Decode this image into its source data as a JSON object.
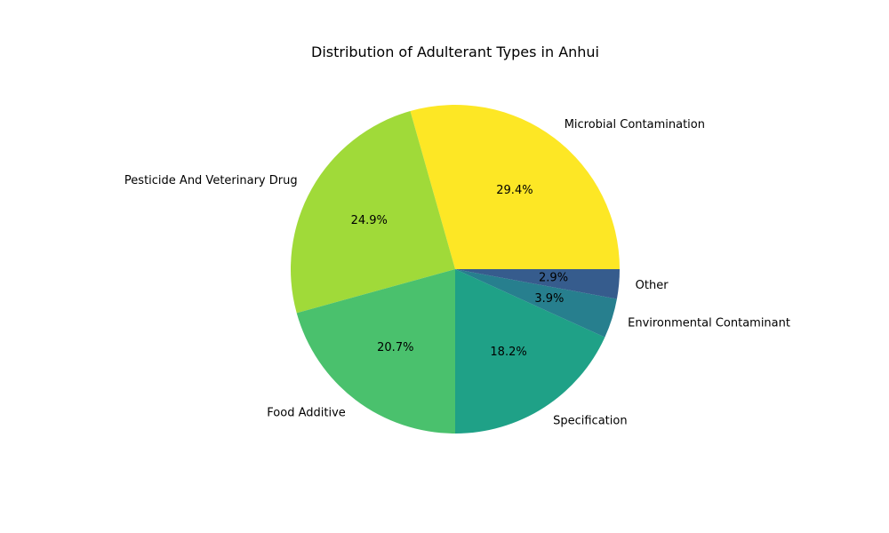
{
  "chart_data": {
    "type": "pie",
    "title": "Distribution of Adulterant Types in Anhui",
    "slices": [
      {
        "label": "Microbial Contamination",
        "value": 29.4,
        "pct_label": "29.4%",
        "color": "#fde725"
      },
      {
        "label": "Pesticide And Veterinary Drug",
        "value": 24.9,
        "pct_label": "24.9%",
        "color": "#a0da39"
      },
      {
        "label": "Food Additive",
        "value": 20.7,
        "pct_label": "20.7%",
        "color": "#4ac16d"
      },
      {
        "label": "Specification",
        "value": 18.2,
        "pct_label": "18.2%",
        "color": "#1fa187"
      },
      {
        "label": "Environmental Contaminant",
        "value": 3.9,
        "pct_label": "3.9%",
        "color": "#277f8e"
      },
      {
        "label": "Other",
        "value": 2.9,
        "pct_label": "2.9%",
        "color": "#365c8d"
      }
    ],
    "start_angle": "3 o'clock",
    "direction": "counterclockwise",
    "legend": "none"
  }
}
